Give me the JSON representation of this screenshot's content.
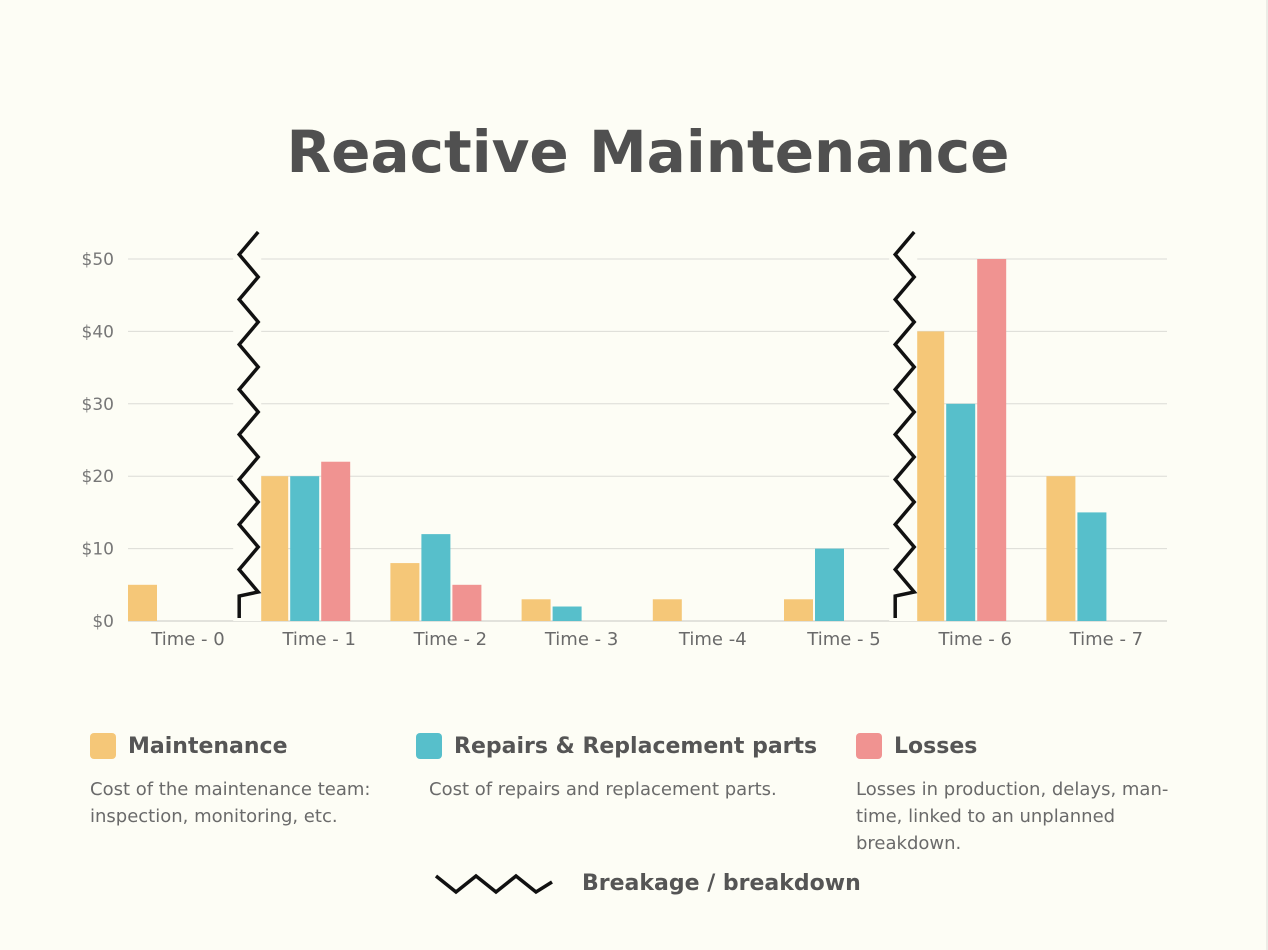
{
  "chart_data": {
    "type": "bar",
    "title": "Reactive Maintenance",
    "categories": [
      "Time - 0",
      "Time - 1",
      "Time - 2",
      "Time - 3",
      "Time -4",
      "Time - 5",
      "Time - 6",
      "Time - 7"
    ],
    "series": [
      {
        "name": "Maintenance",
        "color": "#f5c778",
        "values": [
          5,
          20,
          8,
          3,
          3,
          3,
          40,
          20
        ]
      },
      {
        "name": "Repairs & Replacement parts",
        "color": "#57bfcb",
        "values": [
          0,
          20,
          12,
          2,
          0,
          10,
          30,
          15
        ]
      },
      {
        "name": "Losses",
        "color": "#f09391",
        "values": [
          0,
          22,
          5,
          0,
          0,
          0,
          50,
          0
        ]
      }
    ],
    "y_ticks": [
      "$0",
      "$10",
      "$20",
      "$30",
      "$40",
      "$50"
    ],
    "ylim": [
      0,
      50
    ],
    "grid": true,
    "breakdown_markers": [
      "Time - 1",
      "Time - 6"
    ]
  },
  "legend": [
    {
      "label": "Maintenance",
      "description": "Cost of the maintenance team: inspection, monitoring, etc."
    },
    {
      "label": "Repairs & Replacement parts",
      "description": "Cost of repairs and replacement parts."
    },
    {
      "label": "Losses",
      "description": "Losses in production, delays, man-time, linked to an unplanned breakdown."
    }
  ],
  "breakage_label": "Breakage / breakdown"
}
